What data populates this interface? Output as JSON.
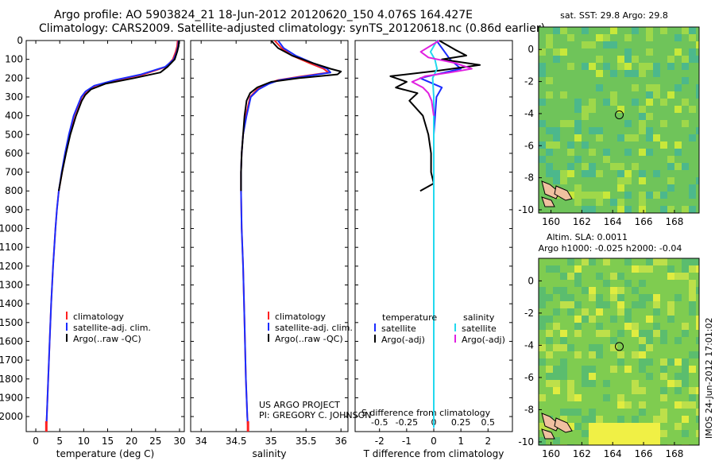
{
  "header": {
    "title_line1": "Argo profile: AO 5903824_21 18-Jun-2012 20120620_150 4.076S 164.427E",
    "title_line2": "Climatology: CARS2009. Satellite-adjusted climatology: synTS_20120618.nc (0.86d earlier)"
  },
  "side_label": "IMOS 24-Jun-2012 17:01:02",
  "colors": {
    "clim": "#ff2020",
    "sat": "#1a2cff",
    "argo": "#000000",
    "sal_sat": "#22d8ee",
    "sal_argo": "#e020e0"
  },
  "chart_data": [
    {
      "type": "line",
      "xlabel": "temperature (deg C)",
      "xticks": [
        0,
        5,
        10,
        15,
        20,
        25,
        30
      ],
      "xlim": [
        -2,
        31
      ],
      "ylim": [
        2080,
        0
      ],
      "yticks": [
        0,
        100,
        200,
        300,
        400,
        500,
        600,
        700,
        800,
        900,
        1000,
        1100,
        1200,
        1300,
        1400,
        1500,
        1600,
        1700,
        1800,
        1900,
        2000
      ],
      "legend": [
        "climatology",
        "satellite-adj. clim.",
        "Argo(..raw -QC)"
      ],
      "series": [
        {
          "name": "climatology",
          "depth": [
            0,
            30,
            60,
            100,
            140,
            180,
            210,
            240,
            270,
            300,
            400,
            500,
            600,
            700,
            800,
            900,
            1000,
            1200,
            1400,
            1600,
            1800,
            2000,
            2060
          ],
          "values": [
            29.6,
            29.5,
            29.2,
            28.6,
            27.2,
            22.5,
            17,
            12.5,
            10.6,
            9.6,
            8.0,
            7.0,
            6.2,
            5.5,
            4.8,
            4.4,
            4.1,
            3.6,
            3.2,
            2.9,
            2.6,
            2.3,
            2.2
          ]
        },
        {
          "name": "satellite-adj. clim.",
          "depth": [
            0,
            30,
            60,
            100,
            140,
            180,
            210,
            240,
            270,
            300,
            400,
            500,
            600,
            700,
            800,
            900,
            1000,
            1200,
            1400,
            1600,
            1800,
            2000,
            2060
          ],
          "values": [
            29.8,
            29.7,
            29.4,
            28.8,
            27.0,
            22.0,
            16.5,
            12.2,
            10.4,
            9.5,
            7.9,
            6.9,
            6.1,
            5.4,
            4.8,
            4.4,
            4.1,
            3.6,
            3.2,
            2.9,
            2.6,
            2.3,
            2.2
          ]
        },
        {
          "name": "Argo(..raw -QC)",
          "depth": [
            0,
            30,
            60,
            100,
            140,
            170,
            200,
            230,
            260,
            290,
            320,
            400,
            500,
            600,
            700,
            800
          ],
          "values": [
            29.9,
            29.8,
            29.5,
            29.0,
            27.5,
            26.0,
            20.5,
            14.5,
            11.5,
            10.3,
            9.6,
            8.4,
            7.2,
            6.3,
            5.5,
            4.8
          ]
        }
      ]
    },
    {
      "type": "line",
      "xlabel": "salinity",
      "xticks": [
        34,
        34.5,
        35,
        35.5,
        36
      ],
      "xlim": [
        33.85,
        36.1
      ],
      "ylim": [
        2080,
        0
      ],
      "legend": [
        "climatology",
        "satellite-adj. clim.",
        "Argo(..raw -QC)"
      ],
      "series": [
        {
          "name": "climatology",
          "depth": [
            0,
            40,
            80,
            120,
            150,
            170,
            190,
            210,
            230,
            260,
            300,
            400,
            500,
            600,
            700,
            800,
            1000,
            1200,
            1500,
            1800,
            2000,
            2060
          ],
          "values": [
            35.05,
            35.15,
            35.3,
            35.55,
            35.75,
            35.82,
            35.45,
            35.1,
            34.95,
            34.8,
            34.7,
            34.64,
            34.6,
            34.58,
            34.57,
            34.57,
            34.58,
            34.6,
            34.62,
            34.64,
            34.66,
            34.67
          ]
        },
        {
          "name": "satellite-adj. clim.",
          "depth": [
            0,
            40,
            80,
            120,
            150,
            170,
            190,
            210,
            230,
            260,
            300,
            400,
            500,
            600,
            700,
            800,
            1000,
            1200,
            1500,
            1800,
            2000,
            2060
          ],
          "values": [
            35.1,
            35.18,
            35.35,
            35.6,
            35.8,
            35.85,
            35.5,
            35.12,
            34.97,
            34.82,
            34.71,
            34.65,
            34.6,
            34.58,
            34.57,
            34.57,
            34.58,
            34.6,
            34.62,
            34.64,
            34.66,
            34.67
          ]
        },
        {
          "name": "Argo(..raw -QC)",
          "depth": [
            0,
            40,
            80,
            120,
            150,
            165,
            180,
            200,
            220,
            250,
            280,
            320,
            400,
            500,
            600,
            700,
            800
          ],
          "values": [
            35.0,
            35.1,
            35.3,
            35.6,
            35.85,
            36.0,
            35.95,
            35.4,
            35.0,
            34.8,
            34.7,
            34.65,
            34.62,
            34.6,
            34.58,
            34.57,
            34.57
          ]
        }
      ]
    },
    {
      "type": "line",
      "xlabel": "T difference from climatology",
      "xlabel_top": "S difference from climatology",
      "xticks": [
        -2,
        -1,
        0,
        1,
        2
      ],
      "xticks_top": [
        "-0.5",
        "-0.25",
        "0",
        "0.25",
        "0.5"
      ],
      "xlim": [
        -2.9,
        2.9
      ],
      "ylim": [
        2080,
        0
      ],
      "legend_left_title": "temperature",
      "legend_right_title": "salinity",
      "legend": [
        "satellite",
        "Argo(-adj)",
        "satellite",
        "Argo(-adj)"
      ],
      "series": [
        {
          "name": "temperature satellite",
          "depth": [
            0,
            100,
            150,
            200,
            250,
            300,
            500,
            800,
            1200,
            2000,
            2060
          ],
          "values": [
            0.1,
            0.6,
            1.0,
            -0.5,
            0.3,
            0.1,
            0.0,
            0.0,
            0.0,
            0.0,
            0.0
          ]
        },
        {
          "name": "temperature Argo(-adj)",
          "depth": [
            0,
            50,
            80,
            100,
            130,
            160,
            190,
            220,
            250,
            280,
            320,
            400,
            500,
            600,
            700,
            760,
            800
          ],
          "values": [
            0.2,
            0.8,
            1.2,
            0.3,
            1.7,
            0.2,
            -1.6,
            -1.0,
            -1.4,
            -0.6,
            -0.9,
            -0.4,
            -0.2,
            -0.1,
            -0.1,
            0.0,
            -0.5
          ]
        },
        {
          "name": "salinity satellite",
          "depth": [
            0,
            60,
            100,
            150,
            200,
            300,
            500,
            800,
            1200,
            2000,
            2060
          ],
          "values": [
            0.03,
            -0.03,
            0.01,
            0.03,
            -0.01,
            0.0,
            0.0,
            0.0,
            0.0,
            0.0,
            0.0
          ]
        },
        {
          "name": "salinity Argo(-adj)",
          "depth": [
            0,
            60,
            90,
            120,
            150,
            170,
            190,
            220,
            250,
            280,
            320,
            400
          ],
          "values": [
            0.05,
            -0.12,
            -0.05,
            0.2,
            0.35,
            0.15,
            -0.08,
            -0.2,
            -0.1,
            -0.05,
            -0.02,
            0.0
          ]
        }
      ]
    },
    {
      "type": "heatmap",
      "title": "sat. SST: 29.8 Argo: 29.8",
      "xticks": [
        160,
        162,
        164,
        166,
        168
      ],
      "yticks": [
        0,
        -2,
        -4,
        -6,
        -8,
        -10
      ],
      "xlim": [
        159.2,
        169.6
      ],
      "ylim": [
        -10.2,
        1.4
      ],
      "argo_position": [
        164.427,
        -4.076
      ]
    },
    {
      "type": "heatmap",
      "title": "Altim. SLA: 0.0011",
      "subtitle": "Argo h1000: -0.025 h2000: -0.04",
      "xticks": [
        160,
        162,
        164,
        166,
        168
      ],
      "yticks": [
        0,
        -2,
        -4,
        -6,
        -8,
        -10
      ],
      "xlim": [
        159.2,
        169.6
      ],
      "ylim": [
        -10.2,
        1.4
      ],
      "argo_position": [
        164.427,
        -4.076
      ]
    }
  ],
  "annotations": {
    "project_line1": "US ARGO PROJECT",
    "project_line2": "PI: GREGORY C. JOHNSON"
  }
}
